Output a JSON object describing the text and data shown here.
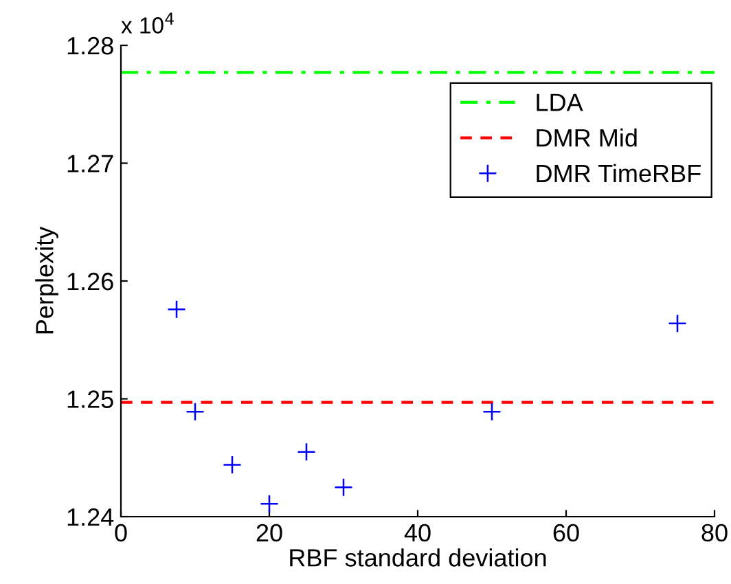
{
  "chart_data": {
    "type": "scatter",
    "xlabel": "RBF standard deviation",
    "ylabel": "Perplexity",
    "annotations": [
      "x 10$^{4}$"
    ],
    "series": [
      {
        "name": "LDA",
        "type": "line",
        "color": "#00ff00",
        "line_style": "dashdot",
        "x": [
          0,
          80
        ],
        "values": [
          1.2777,
          1.2777
        ]
      },
      {
        "name": "DMR Mid",
        "type": "line",
        "color": "#ff0000",
        "line_style": "dashed",
        "x": [
          0,
          80
        ],
        "values": [
          1.2497,
          1.2497
        ]
      },
      {
        "name": "DMR TimeRBF",
        "color": "#0000ff",
        "marker": "cross",
        "x": [
          7.5,
          10,
          15,
          20,
          25,
          30,
          50,
          75
        ],
        "values": [
          1.2576,
          1.2489,
          1.2444,
          1.2411,
          1.2455,
          1.2425,
          1.2489,
          1.2564
        ]
      }
    ],
    "xlim": [
      0,
      80
    ],
    "xticks": [
      0,
      20,
      40,
      60,
      80
    ],
    "ylim": [
      1.24,
      1.28
    ],
    "yticks": [
      1.24,
      1.25,
      1.26,
      1.27,
      1.28
    ],
    "grid": false,
    "legend": "top right"
  }
}
